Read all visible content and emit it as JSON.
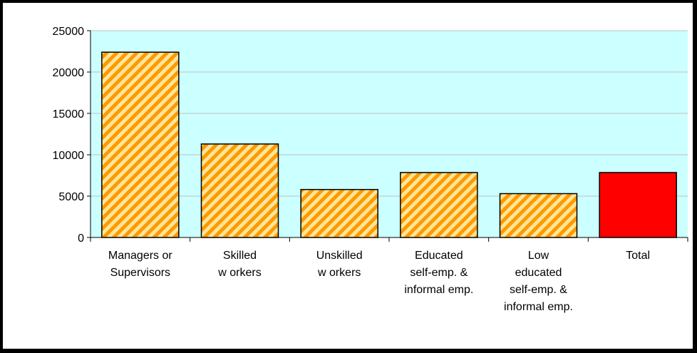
{
  "chart_data": {
    "type": "bar",
    "title": "",
    "xlabel": "",
    "ylabel": "",
    "ylim": [
      0,
      25000
    ],
    "yticks": [
      0,
      5000,
      10000,
      15000,
      20000,
      25000
    ],
    "grid": true,
    "legend": "none",
    "categories": [
      [
        "Managers or",
        "Supervisors"
      ],
      [
        "Skilled",
        "w orkers"
      ],
      [
        "Unskilled",
        "w orkers"
      ],
      [
        "Educated",
        "self-emp. &",
        "informal emp."
      ],
      [
        "Low",
        "educated",
        "self-emp. &",
        "informal emp."
      ],
      [
        "Total"
      ]
    ],
    "values": [
      22400,
      11300,
      5800,
      7850,
      5300,
      7850
    ],
    "bar_styles": [
      "hatched",
      "hatched",
      "hatched",
      "hatched",
      "hatched",
      "solid"
    ],
    "colors": {
      "plot_background": "#CCFFFF",
      "hatch_light": "#FFE699",
      "hatch_dark": "#FF9900",
      "highlight_bar": "#FF0000",
      "gridline": "#C0C0C0"
    }
  }
}
